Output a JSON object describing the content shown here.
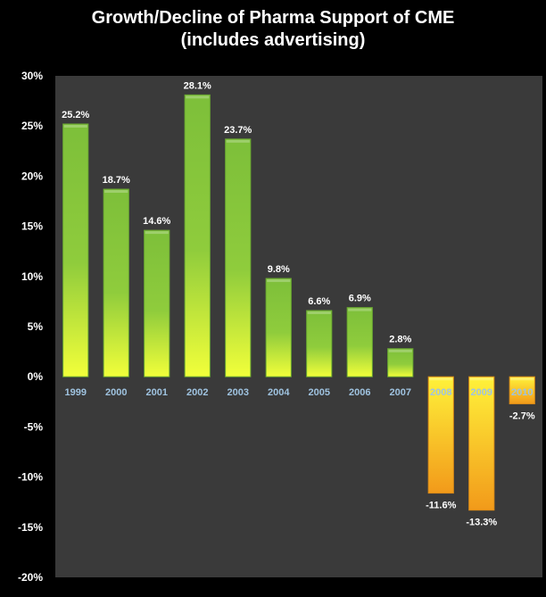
{
  "chart_data": {
    "type": "bar",
    "title": "Growth/Decline of Pharma Support of CME",
    "subtitle": "(includes advertising)",
    "xlabel": "",
    "ylabel": "",
    "categories": [
      "1999",
      "2000",
      "2001",
      "2002",
      "2003",
      "2004",
      "2005",
      "2006",
      "2007",
      "2008",
      "2009",
      "2010"
    ],
    "values": [
      25.2,
      18.7,
      14.6,
      28.1,
      23.7,
      9.8,
      6.6,
      6.9,
      2.8,
      -11.6,
      -13.3,
      -2.7
    ],
    "data_labels": [
      "25.2%",
      "18.7%",
      "14.6%",
      "28.1%",
      "23.7%",
      "9.8%",
      "6.6%",
      "6.9%",
      "2.8%",
      "-11.6%",
      "-13.3%",
      "-2.7%"
    ],
    "ylim": [
      -20,
      30
    ],
    "yticks": [
      30,
      25,
      20,
      15,
      10,
      5,
      0,
      -5,
      -10,
      -15,
      -20
    ],
    "ytick_labels": [
      "30%",
      "25%",
      "20%",
      "15%",
      "10%",
      "5%",
      "0%",
      "-5%",
      "-10%",
      "-15%",
      "-20%"
    ],
    "grid": false,
    "legend": "none",
    "colors": {
      "background": "#000000",
      "plot_area": "#3a3a3a",
      "positive_top": "#7dbf3a",
      "positive_bottom": "#f2ff3a",
      "negative_top": "#fff23a",
      "negative_bottom": "#f29a1a",
      "category_label": "#9fc3e0",
      "text": "#ffffff"
    }
  }
}
